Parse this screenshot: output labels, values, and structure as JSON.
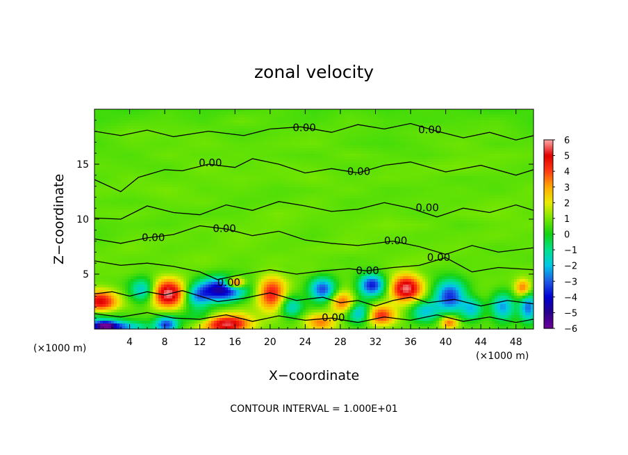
{
  "chart_data": {
    "type": "heatmap",
    "title": "zonal velocity",
    "xlabel": "X−coordinate",
    "ylabel": "Z−coordinate",
    "x_unit": "(×1000 m)",
    "x_unit_right": "(×1000 m)",
    "xlim": [
      0,
      50
    ],
    "ylim": [
      0,
      20
    ],
    "x_ticks": [
      4,
      8,
      12,
      16,
      20,
      24,
      28,
      32,
      36,
      40,
      44,
      48
    ],
    "x_tick_labels": [
      "4",
      "8",
      "12",
      "16",
      "20",
      "24",
      "28",
      "32",
      "36",
      "40",
      "44",
      "48"
    ],
    "y_ticks": [
      5,
      10,
      15
    ],
    "y_tick_labels": [
      "5",
      "10",
      "15"
    ],
    "colorbar": {
      "min": -6,
      "max": 6,
      "ticks": [
        6,
        5,
        4,
        3,
        2,
        1,
        0,
        -1,
        -2,
        -3,
        -4,
        -5,
        -6
      ],
      "tick_labels": [
        "6",
        "5",
        "4",
        "3",
        "2",
        "1",
        "0",
        "−1",
        "−2",
        "−3",
        "−4",
        "−5",
        "−6"
      ]
    },
    "contour_label": "0.00",
    "contour_label_positions": [
      [
        23.9,
        18.3
      ],
      [
        38.2,
        18.1
      ],
      [
        13.2,
        15.1
      ],
      [
        30.1,
        14.3
      ],
      [
        37.9,
        11.0
      ],
      [
        14.8,
        9.1
      ],
      [
        6.7,
        8.3
      ],
      [
        34.3,
        8.0
      ],
      [
        39.2,
        6.5
      ],
      [
        31.1,
        5.3
      ],
      [
        15.3,
        4.2
      ],
      [
        27.2,
        1.0
      ]
    ],
    "field": [
      [
        -1.5,
        0.6,
        0.8,
        0.9,
        0.8,
        0.7,
        0.9,
        0.8,
        0.6,
        0.9,
        0.8,
        0.7,
        0.6
      ],
      [
        -1.2,
        0.5,
        0.6,
        -1.0,
        0.7,
        0.9,
        1.0,
        0.5,
        0.8,
        0.6,
        0.7,
        0.8,
        0.5
      ],
      [
        0.4,
        0.9,
        0.7,
        0.6,
        1.1,
        0.8,
        0.6,
        0.9,
        1.0,
        0.7,
        0.8,
        0.6,
        0.7
      ],
      [
        0.6,
        0.8,
        1.0,
        0.5,
        0.9,
        0.7,
        0.8,
        0.6,
        0.7,
        0.9,
        1.1,
        0.8,
        0.6
      ],
      [
        0.7,
        0.6,
        0.9,
        0.8,
        0.6,
        1.0,
        0.7,
        0.9,
        0.6,
        0.8,
        0.7,
        0.9,
        0.8
      ],
      [
        0.8,
        0.9,
        0.6,
        0.9,
        0.8,
        0.6,
        1.0,
        0.7,
        0.9,
        0.6,
        0.8,
        0.7,
        0.9
      ],
      [
        0.9,
        0.7,
        0.8,
        1.0,
        0.7,
        0.9,
        0.8,
        0.6,
        0.8,
        1.0,
        0.7,
        0.8,
        0.6
      ],
      [
        0.7,
        1.0,
        0.7,
        0.8,
        0.9,
        0.7,
        0.9,
        1.0,
        0.7,
        0.8,
        0.9,
        0.6,
        0.8
      ],
      [
        0.5,
        0.8,
        0.9,
        0.7,
        1.0,
        0.8,
        0.6,
        0.9,
        0.8,
        0.7,
        0.8,
        0.9,
        0.7
      ],
      [
        0.6,
        0.7,
        0.6,
        0.9,
        0.8,
        0.9,
        0.7,
        0.8,
        1.0,
        0.9,
        0.6,
        0.8,
        0.9
      ],
      [
        0.8,
        0.9,
        0.7,
        0.6,
        0.7,
        1.0,
        0.8,
        0.7,
        0.8,
        0.6,
        0.9,
        1.0,
        0.7
      ],
      [
        0.7,
        0.6,
        0.8,
        0.9,
        0.6,
        0.7,
        0.9,
        0.6,
        0.7,
        0.8,
        0.7,
        0.9,
        0.8
      ],
      [
        0.9,
        0.8,
        1.0,
        0.7,
        0.8,
        0.6,
        0.7,
        0.9,
        0.6,
        0.7,
        0.8,
        0.6,
        0.9
      ],
      [
        0.6,
        0.9,
        0.7,
        0.8,
        0.9,
        0.8,
        1.0,
        0.7,
        0.9,
        0.8,
        0.6,
        0.7,
        0.7
      ],
      [
        0.8,
        0.7,
        0.6,
        1.0,
        0.7,
        0.9,
        0.8,
        0.6,
        0.8,
        0.9,
        1.0,
        0.8,
        0.6
      ],
      [
        0.7,
        0.6,
        0.9,
        0.7,
        0.8,
        0.7,
        0.6,
        0.9,
        0.7,
        0.6,
        0.8,
        0.9,
        0.8
      ],
      [
        0.5,
        0.8,
        0.7,
        0.9,
        0.7,
        0.8,
        0.9,
        0.6,
        0.5,
        0.7,
        0.9,
        0.6,
        0.7
      ],
      [
        0.6,
        0.9,
        0.8,
        0.8,
        0.5,
        0.7,
        0.8,
        0.7,
        0.6,
        0.8,
        0.7,
        0.8,
        0.5
      ],
      [
        0.4,
        0.6,
        0.7,
        0.5,
        0.9,
        0.6,
        0.5,
        0.8,
        0.6,
        0.5,
        0.6,
        0.7,
        0.4
      ],
      [
        0.5,
        0.3,
        0.6,
        0.4,
        0.5,
        0.7,
        0.4,
        0.6,
        0.4,
        0.6,
        0.5,
        0.3,
        0.5
      ]
    ],
    "blobs": [
      [
        0.6,
        2.5,
        2.0,
        1.0,
        4.5
      ],
      [
        5.6,
        3.5,
        1.5,
        1.1,
        -3.0
      ],
      [
        8.4,
        3.2,
        2.0,
        1.3,
        5.0
      ],
      [
        8.2,
        0.4,
        1.3,
        0.8,
        -4.0
      ],
      [
        3.0,
        0.2,
        3.0,
        0.5,
        -3.0
      ],
      [
        11.6,
        2.9,
        1.5,
        1.1,
        -2.5
      ],
      [
        14.5,
        3.6,
        2.6,
        1.1,
        -5.5
      ],
      [
        16.0,
        4.2,
        1.1,
        0.5,
        5.5
      ],
      [
        15.0,
        0.5,
        2.7,
        0.9,
        5.0
      ],
      [
        20.2,
        3.2,
        1.6,
        1.5,
        3.8
      ],
      [
        22.4,
        2.0,
        1.3,
        1.0,
        -2.5
      ],
      [
        26.0,
        3.6,
        1.5,
        1.1,
        -4.0
      ],
      [
        28.2,
        2.5,
        1.4,
        1.0,
        3.0
      ],
      [
        25.8,
        0.6,
        1.7,
        0.8,
        2.5
      ],
      [
        30.2,
        1.5,
        1.3,
        1.0,
        -3.0
      ],
      [
        31.6,
        4.0,
        1.5,
        1.0,
        -4.5
      ],
      [
        32.6,
        1.2,
        1.7,
        0.9,
        3.5
      ],
      [
        35.5,
        3.7,
        1.8,
        1.2,
        5.0
      ],
      [
        37.6,
        1.6,
        1.6,
        1.0,
        -2.5
      ],
      [
        40.5,
        3.0,
        1.8,
        1.4,
        -4.5
      ],
      [
        40.4,
        0.6,
        1.0,
        0.6,
        3.0
      ],
      [
        43.0,
        1.8,
        1.2,
        1.0,
        -2.5
      ],
      [
        46.5,
        2.0,
        1.3,
        1.3,
        -3.0
      ],
      [
        48.8,
        3.7,
        0.9,
        0.8,
        3.0
      ],
      [
        49.4,
        2.0,
        1.0,
        1.3,
        -3.5
      ],
      [
        1.2,
        0.3,
        1.2,
        0.4,
        -4.0
      ]
    ],
    "contour_lines": [
      [
        [
          0,
          18.0
        ],
        [
          3,
          17.6
        ],
        [
          6,
          18.1
        ],
        [
          9,
          17.5
        ],
        [
          13,
          18.0
        ],
        [
          17,
          17.6
        ],
        [
          20,
          18.2
        ],
        [
          23.5,
          18.4
        ],
        [
          27,
          17.9
        ],
        [
          30,
          18.6
        ],
        [
          33,
          18.2
        ],
        [
          36,
          18.7
        ],
        [
          39,
          18.0
        ],
        [
          42,
          17.4
        ],
        [
          45,
          17.9
        ],
        [
          48,
          17.2
        ],
        [
          50,
          17.6
        ]
      ],
      [
        [
          0,
          13.6
        ],
        [
          3,
          12.5
        ],
        [
          5,
          13.8
        ],
        [
          8,
          14.5
        ],
        [
          10,
          14.4
        ],
        [
          13,
          15.0
        ],
        [
          16,
          14.7
        ],
        [
          18,
          15.5
        ],
        [
          21,
          15.0
        ],
        [
          24,
          14.2
        ],
        [
          27,
          14.6
        ],
        [
          30,
          14.2
        ],
        [
          33,
          14.9
        ],
        [
          36,
          15.2
        ],
        [
          40,
          14.3
        ],
        [
          44,
          14.9
        ],
        [
          48,
          14.0
        ],
        [
          50,
          14.5
        ]
      ],
      [
        [
          0,
          10.1
        ],
        [
          3,
          10.0
        ],
        [
          6,
          11.2
        ],
        [
          9,
          10.6
        ],
        [
          12,
          10.4
        ],
        [
          15,
          11.3
        ],
        [
          18,
          10.8
        ],
        [
          21,
          11.6
        ],
        [
          24,
          11.2
        ],
        [
          27,
          10.7
        ],
        [
          30,
          10.9
        ],
        [
          33,
          11.5
        ],
        [
          36,
          11.0
        ],
        [
          39,
          10.2
        ],
        [
          42,
          11.0
        ],
        [
          45,
          10.6
        ],
        [
          48,
          11.3
        ],
        [
          50,
          10.8
        ]
      ],
      [
        [
          0,
          8.2
        ],
        [
          3,
          7.8
        ],
        [
          6,
          8.3
        ],
        [
          9,
          8.6
        ],
        [
          12,
          9.4
        ],
        [
          15,
          9.1
        ],
        [
          18,
          8.5
        ],
        [
          21,
          8.9
        ],
        [
          24,
          8.1
        ],
        [
          27,
          7.8
        ],
        [
          30,
          7.6
        ],
        [
          34,
          8.0
        ],
        [
          37,
          7.5
        ],
        [
          40,
          6.8
        ],
        [
          43,
          7.6
        ],
        [
          46,
          7.0
        ],
        [
          50,
          7.4
        ]
      ],
      [
        [
          0,
          6.2
        ],
        [
          3,
          5.8
        ],
        [
          6,
          6.0
        ],
        [
          9,
          5.7
        ],
        [
          12,
          5.2
        ],
        [
          14,
          4.5
        ],
        [
          17,
          5.0
        ],
        [
          20,
          5.4
        ],
        [
          23,
          5.0
        ],
        [
          26,
          5.3
        ],
        [
          29,
          5.5
        ],
        [
          31,
          5.3
        ],
        [
          34,
          5.6
        ],
        [
          37,
          5.8
        ],
        [
          40,
          6.5
        ],
        [
          43,
          5.2
        ],
        [
          46,
          5.6
        ],
        [
          50,
          5.4
        ]
      ],
      [
        [
          0,
          3.2
        ],
        [
          2,
          3.4
        ],
        [
          4,
          3.0
        ],
        [
          6,
          3.4
        ],
        [
          8,
          3.1
        ],
        [
          10,
          3.5
        ],
        [
          12,
          3.0
        ],
        [
          14,
          2.5
        ],
        [
          17,
          2.8
        ],
        [
          20,
          3.3
        ],
        [
          23,
          2.6
        ],
        [
          26,
          2.9
        ],
        [
          28,
          2.4
        ],
        [
          30,
          2.6
        ],
        [
          32,
          2.1
        ],
        [
          34,
          2.6
        ],
        [
          36,
          2.9
        ],
        [
          38,
          2.4
        ],
        [
          41,
          2.7
        ],
        [
          44,
          2.1
        ],
        [
          47,
          2.6
        ],
        [
          50,
          2.3
        ]
      ],
      [
        [
          0,
          1.4
        ],
        [
          3,
          1.1
        ],
        [
          6,
          1.5
        ],
        [
          9,
          1.0
        ],
        [
          12,
          0.9
        ],
        [
          15,
          1.3
        ],
        [
          18,
          0.7
        ],
        [
          21,
          1.2
        ],
        [
          24,
          0.8
        ],
        [
          27,
          1.0
        ],
        [
          30,
          0.6
        ],
        [
          33,
          1.1
        ],
        [
          36,
          0.8
        ],
        [
          39,
          1.3
        ],
        [
          42,
          0.7
        ],
        [
          45,
          1.1
        ],
        [
          48,
          0.6
        ],
        [
          50,
          0.9
        ]
      ]
    ],
    "grid": false
  },
  "footer": {
    "contour_interval_text": "CONTOUR INTERVAL = 1.000E+01"
  }
}
